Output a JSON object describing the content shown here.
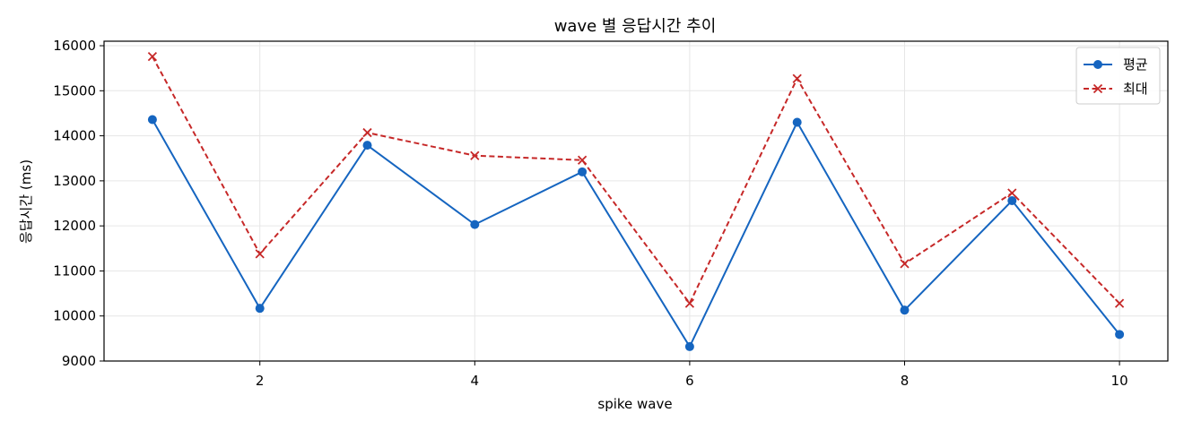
{
  "chart_data": {
    "type": "line",
    "title": "wave 별 응답시간 추이",
    "xlabel": "spike wave",
    "ylabel": "응답시간 (ms)",
    "x": [
      1,
      2,
      3,
      4,
      5,
      6,
      7,
      8,
      9,
      10
    ],
    "xlim": [
      0.55,
      10.45
    ],
    "ylim": [
      9000,
      16100
    ],
    "xticks": [
      2,
      4,
      6,
      8,
      10
    ],
    "yticks": [
      9000,
      10000,
      11000,
      12000,
      13000,
      14000,
      15000,
      16000
    ],
    "grid": true,
    "legend_position": "top-right",
    "series": [
      {
        "name": "평균",
        "color": "#1565c0",
        "line_style": "solid",
        "marker": "circle",
        "values": [
          14360,
          10170,
          13790,
          12030,
          13200,
          9320,
          14300,
          10130,
          12560,
          9590
        ]
      },
      {
        "name": "최대",
        "color": "#c62828",
        "line_style": "dashed",
        "marker": "x",
        "values": [
          15760,
          11380,
          14070,
          13560,
          13460,
          10280,
          15270,
          11160,
          12730,
          10280
        ]
      }
    ]
  }
}
